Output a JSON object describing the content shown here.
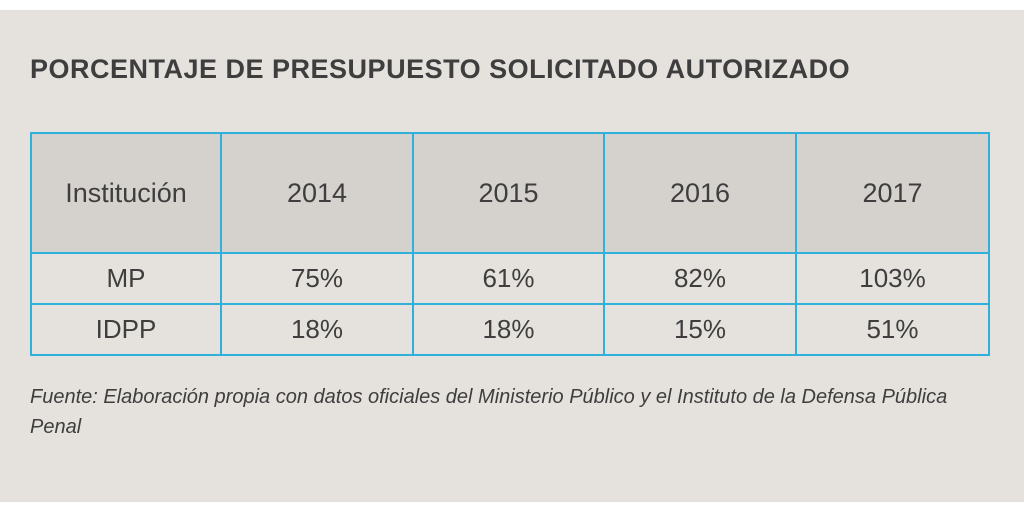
{
  "title": "PORCENTAJE DE PRESUPUESTO SOLICITADO AUTORIZADO",
  "table": {
    "headers": [
      "Institución",
      "2014",
      "2015",
      "2016",
      "2017"
    ],
    "rows": [
      [
        "MP",
        "75%",
        "61%",
        "82%",
        "103%"
      ],
      [
        "IDPP",
        "18%",
        "18%",
        "15%",
        "51%"
      ]
    ]
  },
  "source": "Fuente: Elaboración propia con datos oficiales del Ministerio Público y el Instituto de la Defensa Pública Penal"
}
